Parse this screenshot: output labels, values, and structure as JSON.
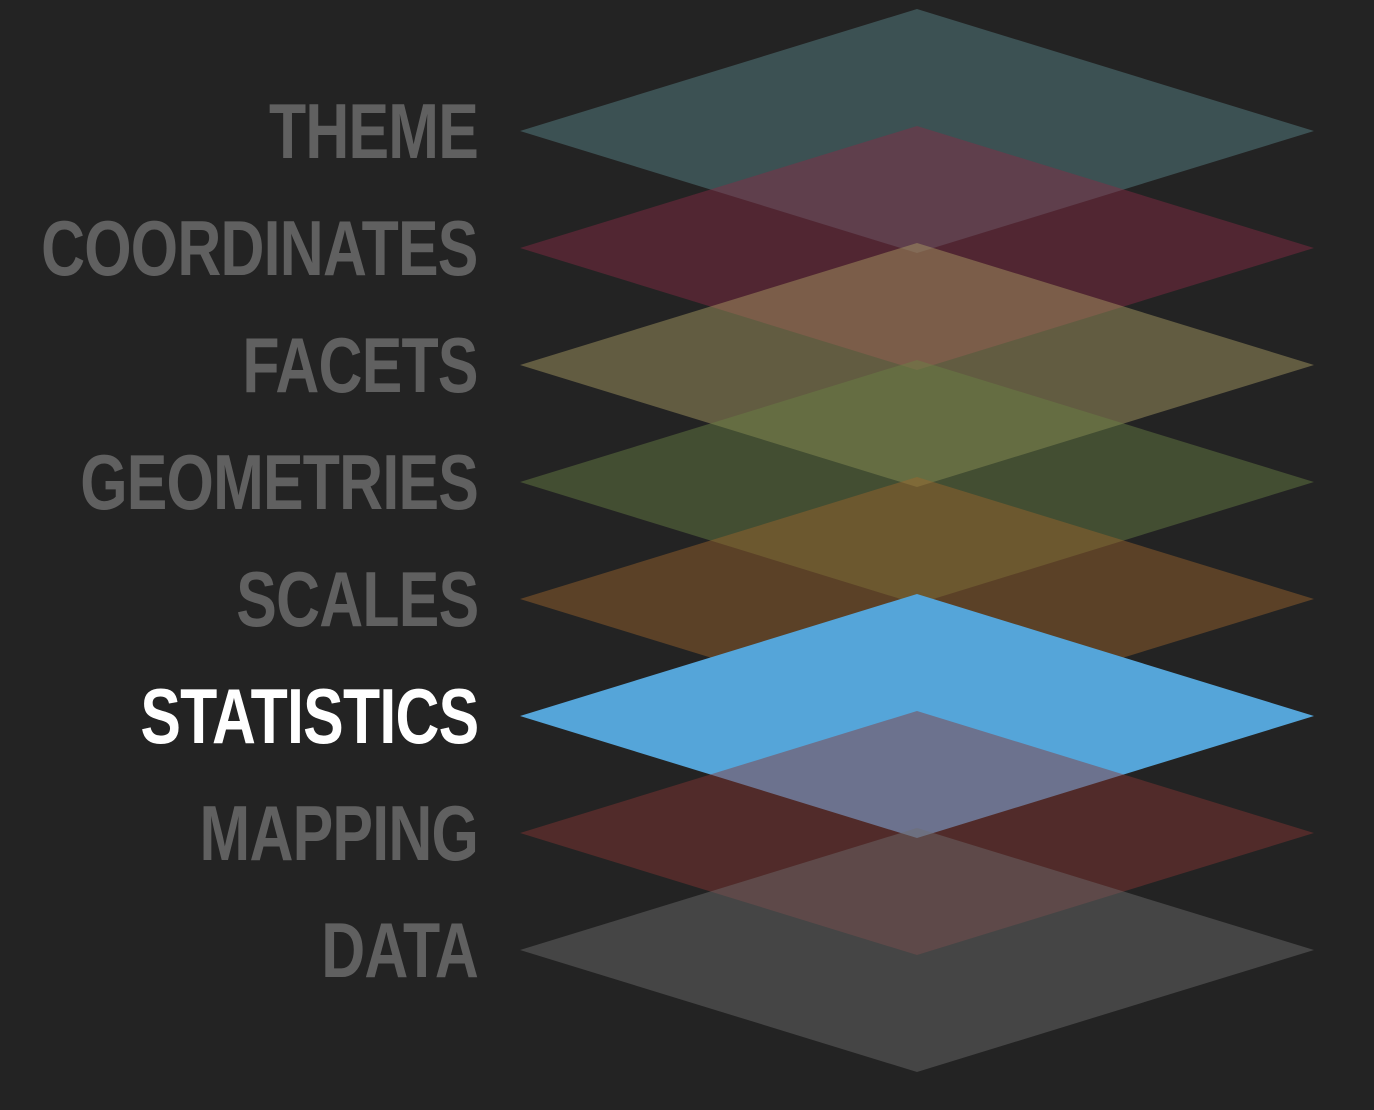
{
  "layers": [
    {
      "label": "THEME",
      "color": "#5a8a8e",
      "highlighted": false
    },
    {
      "label": "COORDINATES",
      "color": "#8a2a45",
      "highlighted": false
    },
    {
      "label": "FACETS",
      "color": "#b0a265",
      "highlighted": false
    },
    {
      "label": "GEOMETRIES",
      "color": "#6b8245",
      "highlighted": false
    },
    {
      "label": "SCALES",
      "color": "#a0662d",
      "highlighted": false
    },
    {
      "label": "STATISTICS",
      "color": "#55a5d9",
      "highlighted": true
    },
    {
      "label": "MAPPING",
      "color": "#8a3532",
      "highlighted": false
    },
    {
      "label": "DATA",
      "color": "#6e6e6e",
      "highlighted": false
    }
  ],
  "colors": {
    "background": "#232323",
    "label_dim": "#606060",
    "label_active": "#ffffff"
  }
}
